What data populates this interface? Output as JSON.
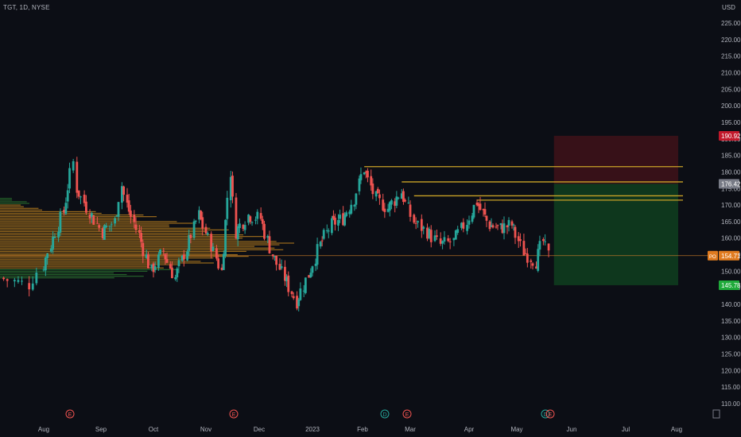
{
  "header": {
    "title": "TGT, 1D, NYSE"
  },
  "price_axis": {
    "currency": "USD",
    "ticks": [
      "225.00",
      "220.00",
      "215.00",
      "210.00",
      "205.00",
      "200.00",
      "195.00",
      "190.00",
      "185.00",
      "180.00",
      "175.00",
      "170.00",
      "165.00",
      "160.00",
      "155.00",
      "150.00",
      "145.00",
      "140.00",
      "135.00",
      "130.00",
      "125.00",
      "120.00",
      "115.00",
      "110.00"
    ],
    "stop_label": "190.92",
    "entry_label": "176.42",
    "target_label": "145.78",
    "last_label": "154.71",
    "last_prefix": "PO"
  },
  "time_axis": {
    "labels": [
      "Aug",
      "Sep",
      "Oct",
      "Nov",
      "Dec",
      "2023",
      "Feb",
      "Mar",
      "Apr",
      "May",
      "Jun",
      "Jul",
      "Aug"
    ]
  },
  "events": [
    {
      "kind": "earnings",
      "symbol": "E",
      "month": "Aug"
    },
    {
      "kind": "earnings",
      "symbol": "E",
      "month": "Nov"
    },
    {
      "kind": "dividend",
      "symbol": "D",
      "month": "Feb"
    },
    {
      "kind": "earnings",
      "symbol": "E",
      "month": "Feb"
    },
    {
      "kind": "dividend",
      "symbol": "D",
      "month": "May"
    },
    {
      "kind": "earnings",
      "symbol": "E",
      "month": "May"
    }
  ],
  "colors": {
    "background": "#0c0e15",
    "up": "#26a69a",
    "down": "#ef5350",
    "level_line": "#c9a227",
    "stop_zone": "#3a1218",
    "target_zone": "#0f3a1e",
    "volume_profile": "#c98a1f",
    "volume_profile_green": "#2e7d32",
    "axis_text": "#b2b5be"
  },
  "chart_data": {
    "type": "candlestick",
    "symbol": "TGT",
    "interval": "1D",
    "exchange": "NYSE",
    "y_range": [
      108,
      227
    ],
    "grid": false,
    "ohlc_path": [
      {
        "date": "2022-07-20",
        "close": 148
      },
      {
        "date": "2022-07-28",
        "close": 146
      },
      {
        "date": "2022-08-05",
        "close": 158
      },
      {
        "date": "2022-08-12",
        "close": 168
      },
      {
        "date": "2022-08-17",
        "close": 183
      },
      {
        "date": "2022-08-19",
        "close": 175
      },
      {
        "date": "2022-08-26",
        "close": 168
      },
      {
        "date": "2022-09-02",
        "close": 162
      },
      {
        "date": "2022-09-09",
        "close": 165
      },
      {
        "date": "2022-09-13",
        "close": 176
      },
      {
        "date": "2022-09-16",
        "close": 170
      },
      {
        "date": "2022-09-23",
        "close": 161
      },
      {
        "date": "2022-09-30",
        "close": 150
      },
      {
        "date": "2022-10-07",
        "close": 156
      },
      {
        "date": "2022-10-14",
        "close": 148
      },
      {
        "date": "2022-10-21",
        "close": 157
      },
      {
        "date": "2022-10-28",
        "close": 167
      },
      {
        "date": "2022-11-04",
        "close": 158
      },
      {
        "date": "2022-11-10",
        "close": 150
      },
      {
        "date": "2022-11-15",
        "close": 180
      },
      {
        "date": "2022-11-18",
        "close": 162
      },
      {
        "date": "2022-11-25",
        "close": 167
      },
      {
        "date": "2022-12-02",
        "close": 166
      },
      {
        "date": "2022-12-09",
        "close": 155
      },
      {
        "date": "2022-12-16",
        "close": 148
      },
      {
        "date": "2022-12-23",
        "close": 141
      },
      {
        "date": "2022-12-30",
        "close": 149
      },
      {
        "date": "2023-01-06",
        "close": 158
      },
      {
        "date": "2023-01-13",
        "close": 164
      },
      {
        "date": "2023-01-20",
        "close": 166
      },
      {
        "date": "2023-01-27",
        "close": 172
      },
      {
        "date": "2023-02-02",
        "close": 181
      },
      {
        "date": "2023-02-09",
        "close": 172
      },
      {
        "date": "2023-02-16",
        "close": 169
      },
      {
        "date": "2023-02-24",
        "close": 174
      },
      {
        "date": "2023-03-03",
        "close": 165
      },
      {
        "date": "2023-03-10",
        "close": 162
      },
      {
        "date": "2023-03-17",
        "close": 158
      },
      {
        "date": "2023-03-24",
        "close": 159
      },
      {
        "date": "2023-03-31",
        "close": 165
      },
      {
        "date": "2023-04-06",
        "close": 171
      },
      {
        "date": "2023-04-14",
        "close": 164
      },
      {
        "date": "2023-04-21",
        "close": 163
      },
      {
        "date": "2023-04-28",
        "close": 164
      },
      {
        "date": "2023-05-05",
        "close": 156
      },
      {
        "date": "2023-05-12",
        "close": 153
      },
      {
        "date": "2023-05-16",
        "close": 159
      },
      {
        "date": "2023-05-19",
        "close": 154.71
      }
    ],
    "levels": [
      {
        "price": 181.6,
        "from": "2023-02-02"
      },
      {
        "price": 177.0,
        "from": "2023-02-24"
      },
      {
        "price": 172.8,
        "from": "2023-03-03"
      },
      {
        "price": 171.5,
        "from": "2023-04-06"
      }
    ],
    "position": {
      "type": "short",
      "entry": 176.42,
      "stop": 190.92,
      "target": 145.78,
      "last": 154.71
    },
    "volume_profile": {
      "price_range": [
        148,
        172
      ],
      "poc_price": 158
    }
  }
}
